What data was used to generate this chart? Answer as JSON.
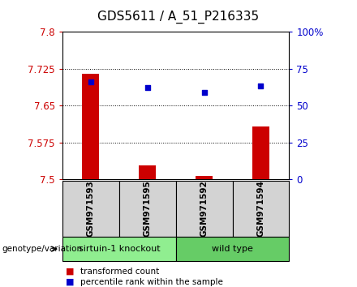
{
  "title": "GDS5611 / A_51_P216335",
  "samples": [
    "GSM971593",
    "GSM971595",
    "GSM971592",
    "GSM971594"
  ],
  "group_spans": [
    {
      "label": "sirtuin-1 knockout",
      "start": 0,
      "end": 1,
      "color": "#90EE90"
    },
    {
      "label": "wild type",
      "start": 2,
      "end": 3,
      "color": "#66CC66"
    }
  ],
  "bar_values": [
    7.715,
    7.528,
    7.507,
    7.608
  ],
  "dot_values": [
    66,
    62,
    59,
    63
  ],
  "ylim_left": [
    7.5,
    7.8
  ],
  "ylim_right": [
    0,
    100
  ],
  "yticks_left": [
    7.5,
    7.575,
    7.65,
    7.725,
    7.8
  ],
  "ytick_labels_left": [
    "7.5",
    "7.575",
    "7.65",
    "7.725",
    "7.8"
  ],
  "yticks_right": [
    0,
    25,
    50,
    75,
    100
  ],
  "ytick_labels_right": [
    "0",
    "25",
    "50",
    "75",
    "100%"
  ],
  "bar_color": "#CC0000",
  "dot_color": "#0000CC",
  "bar_bottom": 7.5,
  "grid_yticks": [
    7.575,
    7.65,
    7.725
  ],
  "sample_box_color": "#D3D3D3",
  "title_fontsize": 11,
  "tick_fontsize": 8.5,
  "label_fontsize": 8
}
